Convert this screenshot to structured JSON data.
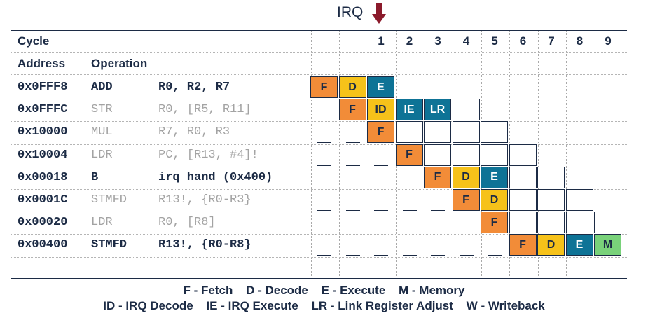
{
  "title": "IRQ",
  "headers": {
    "cycle": "Cycle",
    "address": "Address",
    "operation": "Operation"
  },
  "cycles": [
    "1",
    "2",
    "3",
    "4",
    "5",
    "6",
    "7",
    "8",
    "9"
  ],
  "colors": {
    "F": "#f28c38",
    "D": "#f6c21a",
    "ID": "#f6c21a",
    "E": "#0e7396",
    "IE": "#0e7396",
    "LR": "#0e7396",
    "M": "#79d27a",
    "ink": "#1c2b45",
    "arrow": "#8b1a2b"
  },
  "rows": [
    {
      "address": "0x0FFF8",
      "mnemonic": "ADD",
      "operands": "R0, R2, R7",
      "style": "bold",
      "start": 0,
      "stages": [
        "F",
        "D",
        "E"
      ],
      "total": 3
    },
    {
      "address": "0x0FFFC",
      "mnemonic": "STR",
      "operands": "R0, [R5, R11]",
      "style": "grey",
      "start": 1,
      "stages": [
        "F",
        "ID",
        "IE",
        "LR"
      ],
      "total": 5
    },
    {
      "address": "0x10000",
      "mnemonic": "MUL",
      "operands": "R7, R0, R3",
      "style": "grey",
      "start": 2,
      "stages": [
        "F"
      ],
      "total": 5
    },
    {
      "address": "0x10004",
      "mnemonic": "LDR",
      "operands": "PC, [R13, #4]!",
      "style": "grey",
      "start": 3,
      "stages": [
        "F"
      ],
      "total": 5
    },
    {
      "address": "0x00018",
      "mnemonic": "B",
      "operands": "irq_hand (0x400)",
      "style": "bold",
      "start": 4,
      "stages": [
        "F",
        "D",
        "E"
      ],
      "total": 5
    },
    {
      "address": "0x0001C",
      "mnemonic": "STMFD",
      "operands": "R13!, {R0-R3}",
      "style": "grey",
      "start": 5,
      "stages": [
        "F",
        "D"
      ],
      "total": 5
    },
    {
      "address": "0x00020",
      "mnemonic": "LDR",
      "operands": "R0, [R8]",
      "style": "grey",
      "start": 6,
      "stages": [
        "F"
      ],
      "total": 5
    },
    {
      "address": "0x00400",
      "mnemonic": "STMFD",
      "operands": "R13!, {R0-R8}",
      "style": "bold",
      "start": 7,
      "stages": [
        "F",
        "D",
        "E",
        "M"
      ],
      "total": 4
    }
  ],
  "legend": {
    "line1": [
      "F - Fetch",
      "D - Decode",
      "E - Execute",
      "M - Memory"
    ],
    "line2": [
      "ID - IRQ Decode",
      "IE - IRQ Execute",
      "LR - Link Register Adjust",
      "W - Writeback"
    ]
  }
}
